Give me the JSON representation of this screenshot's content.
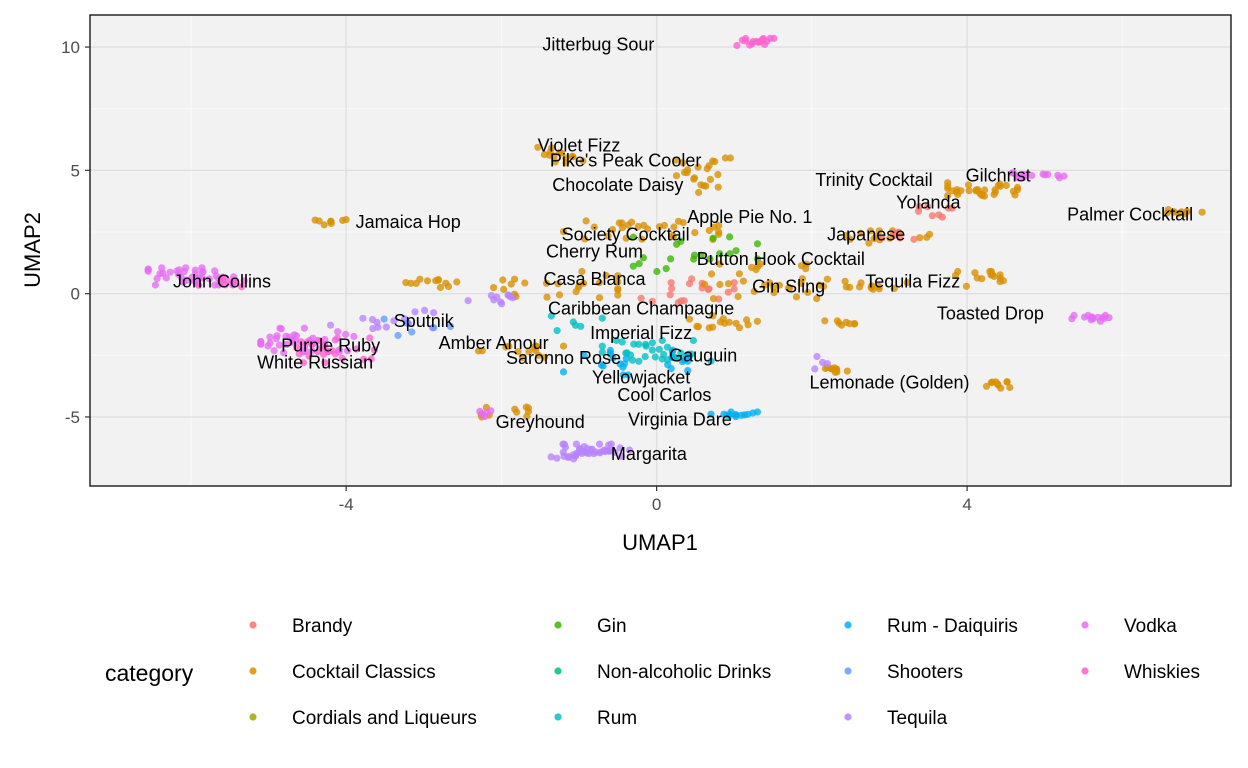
{
  "chart_data": {
    "type": "scatter",
    "title": "",
    "xlabel": "UMAP1",
    "ylabel": "UMAP2",
    "xlim": [
      -7.3,
      7.4
    ],
    "ylim": [
      -7.8,
      11.3
    ],
    "xticks": [
      -4,
      0,
      4
    ],
    "yticks": [
      -5,
      0,
      5,
      10
    ],
    "grid": true,
    "legend": {
      "title": "category",
      "position": "bottom",
      "entries": [
        {
          "name": "Brandy",
          "color": "#F8766D"
        },
        {
          "name": "Cocktail Classics",
          "color": "#D89000"
        },
        {
          "name": "Cordials and Liqueurs",
          "color": "#A3A500"
        },
        {
          "name": "Gin",
          "color": "#39B600"
        },
        {
          "name": "Non-alcoholic Drinks",
          "color": "#00BF7D"
        },
        {
          "name": "Rum",
          "color": "#00BFC4"
        },
        {
          "name": "Rum - Daiquiris",
          "color": "#00B0F6"
        },
        {
          "name": "Shooters",
          "color": "#619CFF"
        },
        {
          "name": "Tequila",
          "color": "#B983FF"
        },
        {
          "name": "Vodka",
          "color": "#E76BF3"
        },
        {
          "name": "Whiskies",
          "color": "#FD61D1"
        }
      ]
    },
    "clusters": [
      {
        "category": "Whiskies",
        "center": [
          1.3,
          10.2
        ],
        "spread": [
          0.35,
          0.15
        ],
        "n": 16
      },
      {
        "category": "Cocktail Classics",
        "center": [
          -1.3,
          5.6
        ],
        "spread": [
          0.35,
          0.35
        ],
        "n": 14
      },
      {
        "category": "Cocktail Classics",
        "center": [
          0.6,
          4.8
        ],
        "spread": [
          0.35,
          0.7
        ],
        "n": 22
      },
      {
        "category": "Vodka",
        "center": [
          -6.0,
          0.7
        ],
        "spread": [
          0.55,
          0.35
        ],
        "n": 40
      },
      {
        "category": "Whiskies",
        "center": [
          -5.6,
          0.4
        ],
        "spread": [
          0.3,
          0.2
        ],
        "n": 8
      },
      {
        "category": "Cocktail Classics",
        "center": [
          -4.2,
          2.9
        ],
        "spread": [
          0.2,
          0.15
        ],
        "n": 8
      },
      {
        "category": "Vodka",
        "center": [
          -4.5,
          -1.9
        ],
        "spread": [
          0.6,
          0.5
        ],
        "n": 40
      },
      {
        "category": "Whiskies",
        "center": [
          -4.2,
          -2.3
        ],
        "spread": [
          0.6,
          0.5
        ],
        "n": 25
      },
      {
        "category": "Tequila",
        "center": [
          -3.4,
          -1.0
        ],
        "spread": [
          0.8,
          0.5
        ],
        "n": 14
      },
      {
        "category": "Shooters",
        "center": [
          -3.0,
          -1.3
        ],
        "spread": [
          0.6,
          0.4
        ],
        "n": 6
      },
      {
        "category": "Cocktail Classics",
        "center": [
          -2.8,
          0.5
        ],
        "spread": [
          0.45,
          0.25
        ],
        "n": 12
      },
      {
        "category": "Cocktail Classics",
        "center": [
          -1.3,
          0.3
        ],
        "spread": [
          0.8,
          0.6
        ],
        "n": 25
      },
      {
        "category": "Cocktail Classics",
        "center": [
          -0.2,
          2.6
        ],
        "spread": [
          1.0,
          0.4
        ],
        "n": 30
      },
      {
        "category": "Gin",
        "center": [
          0.5,
          1.6
        ],
        "spread": [
          0.8,
          0.7
        ],
        "n": 20
      },
      {
        "category": "Brandy",
        "center": [
          0.4,
          0.1
        ],
        "spread": [
          0.6,
          0.5
        ],
        "n": 18
      },
      {
        "category": "Cocktail Classics",
        "center": [
          1.4,
          0.5
        ],
        "spread": [
          0.8,
          0.7
        ],
        "n": 30
      },
      {
        "category": "Cocktail Classics",
        "center": [
          0.8,
          -1.2
        ],
        "spread": [
          0.6,
          0.3
        ],
        "n": 15
      },
      {
        "category": "Rum",
        "center": [
          0.0,
          -2.4
        ],
        "spread": [
          0.7,
          0.5
        ],
        "n": 35
      },
      {
        "category": "Rum - Daiquiris",
        "center": [
          -0.4,
          -2.7
        ],
        "spread": [
          0.8,
          0.6
        ],
        "n": 20
      },
      {
        "category": "Rum",
        "center": [
          -1.2,
          -1.2
        ],
        "spread": [
          0.5,
          0.3
        ],
        "n": 6
      },
      {
        "category": "Cocktail Classics",
        "center": [
          -1.8,
          -2.3
        ],
        "spread": [
          0.6,
          0.3
        ],
        "n": 14
      },
      {
        "category": "Tequila",
        "center": [
          -2.1,
          -0.2
        ],
        "spread": [
          0.4,
          0.3
        ],
        "n": 10
      },
      {
        "category": "Rum - Daiquiris",
        "center": [
          1.0,
          -4.9
        ],
        "spread": [
          0.3,
          0.1
        ],
        "n": 14
      },
      {
        "category": "Tequila",
        "center": [
          -0.9,
          -6.4
        ],
        "spread": [
          0.55,
          0.3
        ],
        "n": 45
      },
      {
        "category": "Cocktail Classics",
        "center": [
          -2.0,
          -4.8
        ],
        "spread": [
          0.35,
          0.2
        ],
        "n": 10
      },
      {
        "category": "Vodka",
        "center": [
          -2.2,
          -4.9
        ],
        "spread": [
          0.25,
          0.15
        ],
        "n": 5
      },
      {
        "category": "Cocktail Classics",
        "center": [
          4.2,
          4.2
        ],
        "spread": [
          0.45,
          0.3
        ],
        "n": 30
      },
      {
        "category": "Brandy",
        "center": [
          3.6,
          3.4
        ],
        "spread": [
          0.25,
          0.3
        ],
        "n": 8
      },
      {
        "category": "Vodka",
        "center": [
          4.9,
          4.8
        ],
        "spread": [
          0.35,
          0.1
        ],
        "n": 14
      },
      {
        "category": "Cocktail Classics",
        "center": [
          3.0,
          2.3
        ],
        "spread": [
          0.55,
          0.25
        ],
        "n": 15
      },
      {
        "category": "Brandy",
        "center": [
          3.1,
          2.4
        ],
        "spread": [
          0.3,
          0.2
        ],
        "n": 6
      },
      {
        "category": "Cocktail Classics",
        "center": [
          6.8,
          3.3
        ],
        "spread": [
          0.25,
          0.12
        ],
        "n": 10
      },
      {
        "category": "Cocktail Classics",
        "center": [
          2.7,
          0.3
        ],
        "spread": [
          0.6,
          0.2
        ],
        "n": 15
      },
      {
        "category": "Cocktail Classics",
        "center": [
          4.2,
          0.6
        ],
        "spread": [
          0.35,
          0.3
        ],
        "n": 15
      },
      {
        "category": "Vodka",
        "center": [
          5.6,
          -1.0
        ],
        "spread": [
          0.25,
          0.12
        ],
        "n": 14
      },
      {
        "category": "Cocktail Classics",
        "center": [
          2.3,
          -3.1
        ],
        "spread": [
          0.2,
          0.15
        ],
        "n": 10
      },
      {
        "category": "Tequila",
        "center": [
          2.1,
          -2.8
        ],
        "spread": [
          0.1,
          0.25
        ],
        "n": 4
      },
      {
        "category": "Cocktail Classics",
        "center": [
          4.4,
          -3.7
        ],
        "spread": [
          0.15,
          0.15
        ],
        "n": 10
      },
      {
        "category": "Cocktail Classics",
        "center": [
          2.3,
          -1.2
        ],
        "spread": [
          0.25,
          0.1
        ],
        "n": 8
      }
    ],
    "annotations": [
      {
        "text": "Jitterbug Sour",
        "x": -0.75,
        "y": 10.1
      },
      {
        "text": "Violet Fizz",
        "x": -1.0,
        "y": 6.0
      },
      {
        "text": "Pike's Peak Cooler",
        "x": -0.4,
        "y": 5.4
      },
      {
        "text": "Chocolate Daisy",
        "x": -0.5,
        "y": 4.4
      },
      {
        "text": "Jamaica Hop",
        "x": -3.2,
        "y": 2.9
      },
      {
        "text": "Trinity Cocktail",
        "x": 2.8,
        "y": 4.6
      },
      {
        "text": "Gilchrist",
        "x": 4.4,
        "y": 4.8
      },
      {
        "text": "Yolanda",
        "x": 3.5,
        "y": 3.7
      },
      {
        "text": "Palmer Cocktail",
        "x": 6.1,
        "y": 3.2
      },
      {
        "text": "Apple Pie No. 1",
        "x": 1.2,
        "y": 3.1
      },
      {
        "text": "Society Cocktail",
        "x": -0.4,
        "y": 2.4
      },
      {
        "text": "Japanese",
        "x": 2.7,
        "y": 2.4
      },
      {
        "text": "Cherry Rum",
        "x": -0.8,
        "y": 1.7
      },
      {
        "text": "Button Hook Cocktail",
        "x": 1.6,
        "y": 1.4
      },
      {
        "text": "John Collins",
        "x": -5.6,
        "y": 0.5
      },
      {
        "text": "Casa Blanca",
        "x": -0.8,
        "y": 0.6
      },
      {
        "text": "Gin Sling",
        "x": 1.7,
        "y": 0.3
      },
      {
        "text": "Tequila Fizz",
        "x": 3.3,
        "y": 0.5
      },
      {
        "text": "Caribbean Champagne",
        "x": -0.2,
        "y": -0.6
      },
      {
        "text": "Toasted Drop",
        "x": 4.3,
        "y": -0.8
      },
      {
        "text": "Sputnik",
        "x": -3.0,
        "y": -1.1
      },
      {
        "text": "Imperial Fizz",
        "x": -0.2,
        "y": -1.6
      },
      {
        "text": "Amber Amour",
        "x": -2.1,
        "y": -2.0
      },
      {
        "text": "Purple Ruby",
        "x": -4.2,
        "y": -2.1
      },
      {
        "text": "Saronno Rose",
        "x": -1.2,
        "y": -2.6
      },
      {
        "text": "Gauguin",
        "x": 0.6,
        "y": -2.5
      },
      {
        "text": "White Russian",
        "x": -4.4,
        "y": -2.8
      },
      {
        "text": "Yellowjacket",
        "x": -0.2,
        "y": -3.4
      },
      {
        "text": "Lemonade (Golden)",
        "x": 3.0,
        "y": -3.6
      },
      {
        "text": "Cool Carlos",
        "x": 0.1,
        "y": -4.1
      },
      {
        "text": "Greyhound",
        "x": -1.5,
        "y": -5.2
      },
      {
        "text": "Virginia Dare",
        "x": 0.3,
        "y": -5.1
      },
      {
        "text": "Margarita",
        "x": -0.1,
        "y": -6.5
      }
    ]
  }
}
